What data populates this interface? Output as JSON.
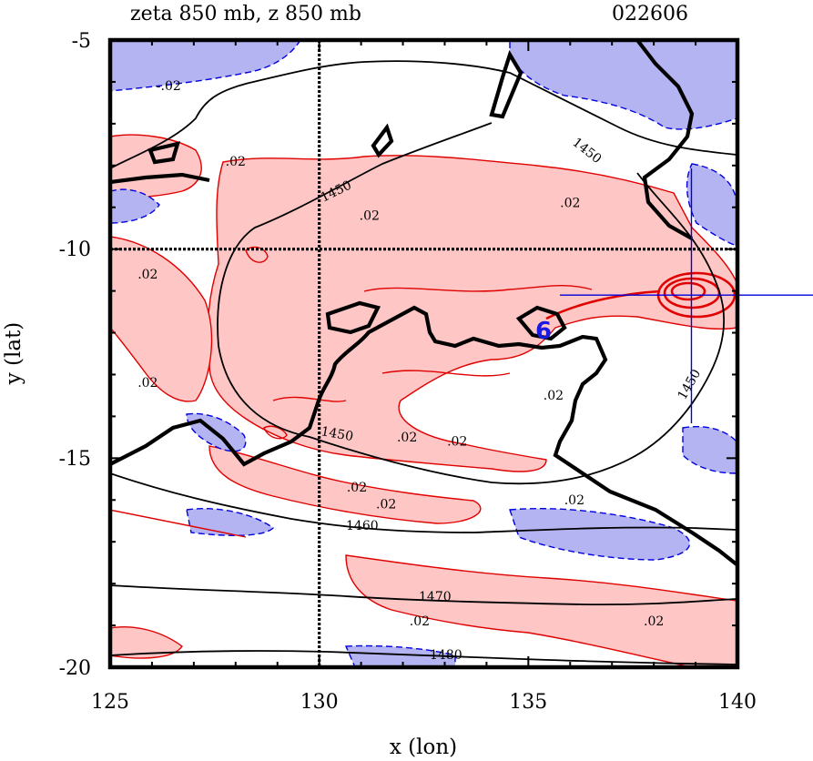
{
  "chart_data": {
    "type": "contour",
    "title_left": "zeta 850 mb, z 850 mb",
    "title_right": "022606",
    "xlabel": "x (lon)",
    "ylabel": "y (lat)",
    "xlim": [
      125,
      140
    ],
    "ylim": [
      -20,
      -5
    ],
    "xticks": [
      "125",
      "130",
      "135",
      "140"
    ],
    "yticks": [
      "-5",
      "-10",
      "-15",
      "-20"
    ],
    "colors": {
      "positive_fill": "#ffc6c6",
      "positive_line": "#e00000",
      "negative_fill": "#b4b4f2",
      "negative_line": "#0000e0",
      "height_line": "#000000",
      "marker": "#0000dd"
    },
    "reference_lines": {
      "lon": 130,
      "lat": -10
    },
    "crosshair": {
      "lon": 138.9,
      "lat": -11.1
    },
    "geopotential_height_contours": [
      {
        "label": "1450"
      },
      {
        "label": "1460"
      },
      {
        "label": "1470"
      },
      {
        "label": "1480"
      }
    ],
    "vorticity_contour_label": ".02",
    "vorticity_labels": [
      {
        "text": "-.02",
        "lon": 126.4,
        "lat": -6.2
      },
      {
        "text": ".02",
        "lon": 128.0,
        "lat": -8.0
      },
      {
        "text": ".02",
        "lon": 125.9,
        "lat": -10.7
      },
      {
        "text": ".02",
        "lon": 125.9,
        "lat": -13.3
      },
      {
        "text": ".02",
        "lon": 131.2,
        "lat": -9.3
      },
      {
        "text": ".02",
        "lon": 136.0,
        "lat": -9.0
      },
      {
        "text": ".02",
        "lon": 135.6,
        "lat": -13.6
      },
      {
        "text": ".02",
        "lon": 132.1,
        "lat": -14.6
      },
      {
        "text": ".02",
        "lon": 133.3,
        "lat": -14.7
      },
      {
        "text": ".02",
        "lon": 130.9,
        "lat": -15.8
      },
      {
        "text": ".02",
        "lon": 131.6,
        "lat": -16.2
      },
      {
        "text": ".02",
        "lon": 136.1,
        "lat": -16.1
      },
      {
        "text": ".02",
        "lon": 132.4,
        "lat": -19.0
      },
      {
        "text": ".02",
        "lon": 138.0,
        "lat": -19.0
      }
    ]
  }
}
